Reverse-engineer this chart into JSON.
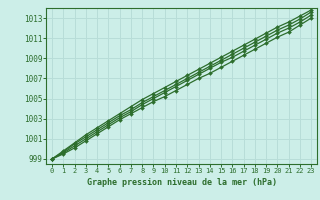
{
  "title": "",
  "xlabel": "Graphe pression niveau de la mer (hPa)",
  "ylabel": "",
  "bg_color": "#cceee8",
  "plot_bg_color": "#cceee8",
  "line_color": "#2d6e2d",
  "grid_color": "#b8ddd8",
  "axis_color": "#2d6e2d",
  "tick_label_color": "#2d6e2d",
  "xlabel_color": "#2d6e2d",
  "xlim": [
    -0.5,
    23.5
  ],
  "ylim": [
    998.5,
    1014.0
  ],
  "yticks": [
    999,
    1001,
    1003,
    1005,
    1007,
    1009,
    1011,
    1013
  ],
  "xticks": [
    0,
    1,
    2,
    3,
    4,
    5,
    6,
    7,
    8,
    9,
    10,
    11,
    12,
    13,
    14,
    15,
    16,
    17,
    18,
    19,
    20,
    21,
    22,
    23
  ],
  "series": [
    [
      999.0,
      999.5,
      1000.1,
      1000.8,
      1001.5,
      1002.2,
      1002.9,
      1003.5,
      1004.1,
      1004.7,
      1005.2,
      1005.8,
      1006.4,
      1007.0,
      1007.5,
      1008.1,
      1008.7,
      1009.3,
      1009.9,
      1010.5,
      1011.1,
      1011.6,
      1012.3,
      1013.0
    ],
    [
      999.0,
      999.6,
      1000.3,
      1001.0,
      1001.7,
      1002.4,
      1003.1,
      1003.7,
      1004.4,
      1005.0,
      1005.6,
      1006.2,
      1006.8,
      1007.4,
      1008.0,
      1008.6,
      1009.1,
      1009.7,
      1010.3,
      1010.9,
      1011.5,
      1012.0,
      1012.6,
      1013.3
    ],
    [
      999.0,
      999.7,
      1000.5,
      1001.2,
      1001.9,
      1002.6,
      1003.3,
      1003.9,
      1004.6,
      1005.2,
      1005.8,
      1006.4,
      1007.0,
      1007.6,
      1008.2,
      1008.8,
      1009.4,
      1010.0,
      1010.6,
      1011.2,
      1011.8,
      1012.3,
      1012.9,
      1013.6
    ],
    [
      999.0,
      999.8,
      1000.6,
      1001.4,
      1002.1,
      1002.8,
      1003.5,
      1004.2,
      1004.9,
      1005.5,
      1006.1,
      1006.7,
      1007.3,
      1007.9,
      1008.5,
      1009.1,
      1009.7,
      1010.3,
      1010.9,
      1011.5,
      1012.1,
      1012.6,
      1013.2,
      1013.8
    ]
  ]
}
